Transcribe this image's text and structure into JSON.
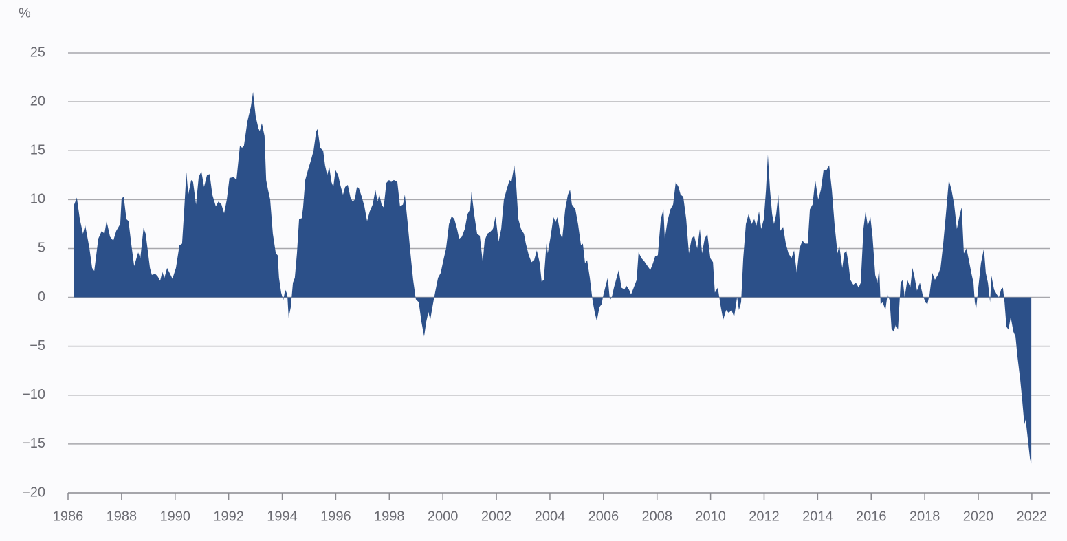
{
  "chart_data": {
    "type": "area",
    "y_label": "%",
    "x": [
      1986.23,
      1986.33,
      1986.44,
      1986.56,
      1986.64,
      1986.8,
      1986.9,
      1986.98,
      1987.13,
      1987.26,
      1987.36,
      1987.44,
      1987.57,
      1987.69,
      1987.8,
      1987.95,
      1988,
      1988.08,
      1988.18,
      1988.26,
      1988.36,
      1988.47,
      1988.62,
      1988.7,
      1988.82,
      1988.9,
      1989.06,
      1989.13,
      1989.26,
      1989.36,
      1989.44,
      1989.52,
      1989.6,
      1989.7,
      1989.83,
      1989.9,
      1990.03,
      1990.16,
      1990.26,
      1990.34,
      1990.42,
      1990.49,
      1990.6,
      1990.67,
      1990.78,
      1990.88,
      1990.98,
      1991.08,
      1991.19,
      1991.29,
      1991.39,
      1991.52,
      1991.62,
      1991.73,
      1991.83,
      1991.93,
      1992.03,
      1992.19,
      1992.29,
      1992.42,
      1992.5,
      1992.57,
      1992.7,
      1992.83,
      1992.91,
      1993.01,
      1993.11,
      1993.16,
      1993.24,
      1993.34,
      1993.4,
      1993.47,
      1993.55,
      1993.65,
      1993.76,
      1993.83,
      1993.88,
      1993.96,
      1994.04,
      1994.11,
      1994.19,
      1994.24,
      1994.32,
      1994.4,
      1994.47,
      1994.55,
      1994.63,
      1994.73,
      1994.78,
      1994.86,
      1994.96,
      1995.07,
      1995.17,
      1995.27,
      1995.32,
      1995.42,
      1995.53,
      1995.6,
      1995.68,
      1995.76,
      1995.84,
      1995.91,
      1995.99,
      1996.09,
      1996.17,
      1996.27,
      1996.35,
      1996.45,
      1996.55,
      1996.63,
      1996.71,
      1996.79,
      1996.86,
      1996.97,
      1997.07,
      1997.17,
      1997.27,
      1997.38,
      1997.48,
      1997.56,
      1997.63,
      1997.71,
      1997.79,
      1997.89,
      1997.99,
      1998.07,
      1998.17,
      1998.3,
      1998.4,
      1998.51,
      1998.58,
      1998.69,
      1998.79,
      1998.89,
      1998.99,
      1999.1,
      1999.2,
      1999.3,
      1999.38,
      1999.46,
      1999.53,
      1999.61,
      1999.71,
      1999.82,
      1999.92,
      2000.02,
      2000.12,
      2000.23,
      2000.33,
      2000.43,
      2000.53,
      2000.61,
      2000.71,
      2000.82,
      2000.92,
      2001.02,
      2001.07,
      2001.18,
      2001.28,
      2001.38,
      2001.49,
      2001.56,
      2001.66,
      2001.77,
      2001.87,
      2001.97,
      2002.08,
      2002.18,
      2002.28,
      2002.38,
      2002.49,
      2002.56,
      2002.67,
      2002.74,
      2002.82,
      2002.92,
      2003.03,
      2003.1,
      2003.21,
      2003.31,
      2003.41,
      2003.51,
      2003.62,
      2003.69,
      2003.77,
      2003.87,
      2003.92,
      2004.03,
      2004.13,
      2004.21,
      2004.28,
      2004.39,
      2004.46,
      2004.57,
      2004.67,
      2004.75,
      2004.82,
      2004.95,
      2005.05,
      2005.16,
      2005.23,
      2005.31,
      2005.39,
      2005.49,
      2005.59,
      2005.67,
      2005.75,
      2005.85,
      2005.93,
      2006,
      2006.11,
      2006.16,
      2006.24,
      2006.31,
      2006.39,
      2006.49,
      2006.57,
      2006.67,
      2006.78,
      2006.85,
      2006.95,
      2007.03,
      2007.13,
      2007.24,
      2007.31,
      2007.42,
      2007.52,
      2007.62,
      2007.75,
      2007.85,
      2007.93,
      2008.03,
      2008.14,
      2008.24,
      2008.29,
      2008.39,
      2008.5,
      2008.6,
      2008.7,
      2008.8,
      2008.88,
      2008.98,
      2009.09,
      2009.19,
      2009.29,
      2009.39,
      2009.5,
      2009.6,
      2009.68,
      2009.78,
      2009.88,
      2009.99,
      2010.09,
      2010.16,
      2010.27,
      2010.37,
      2010.47,
      2010.58,
      2010.68,
      2010.78,
      2010.88,
      2010.99,
      2011.06,
      2011.14,
      2011.22,
      2011.32,
      2011.42,
      2011.53,
      2011.63,
      2011.71,
      2011.81,
      2011.89,
      2011.99,
      2012.07,
      2012.14,
      2012.22,
      2012.3,
      2012.37,
      2012.45,
      2012.53,
      2012.6,
      2012.71,
      2012.81,
      2012.91,
      2013.02,
      2013.12,
      2013.22,
      2013.32,
      2013.43,
      2013.53,
      2013.63,
      2013.71,
      2013.81,
      2013.91,
      2014.02,
      2014.12,
      2014.22,
      2014.33,
      2014.43,
      2014.53,
      2014.63,
      2014.74,
      2014.81,
      2014.92,
      2014.99,
      2015.07,
      2015.15,
      2015.22,
      2015.33,
      2015.43,
      2015.53,
      2015.61,
      2015.71,
      2015.79,
      2015.87,
      2015.97,
      2016.05,
      2016.15,
      2016.23,
      2016.3,
      2016.35,
      2016.43,
      2016.53,
      2016.61,
      2016.69,
      2016.76,
      2016.84,
      2016.92,
      2017,
      2017.1,
      2017.18,
      2017.25,
      2017.35,
      2017.46,
      2017.54,
      2017.61,
      2017.71,
      2017.82,
      2017.92,
      2018.02,
      2018.1,
      2018.18,
      2018.28,
      2018.38,
      2018.49,
      2018.59,
      2018.69,
      2018.79,
      2018.9,
      2019,
      2019.1,
      2019.2,
      2019.31,
      2019.38,
      2019.46,
      2019.56,
      2019.67,
      2019.74,
      2019.82,
      2019.87,
      2019.92,
      2020,
      2020.1,
      2020.21,
      2020.28,
      2020.36,
      2020.44,
      2020.49,
      2020.59,
      2020.69,
      2020.77,
      2020.85,
      2020.92,
      2020.98,
      2021.05,
      2021.13,
      2021.21,
      2021.31,
      2021.39,
      2021.46,
      2021.57,
      2021.64,
      2021.72,
      2021.77,
      2021.85,
      2021.93,
      2021.98
    ],
    "values": [
      9.5,
      10.2,
      8,
      6.5,
      7.4,
      5,
      3,
      2.7,
      6,
      6.8,
      6.5,
      7.8,
      6.2,
      5.8,
      6.8,
      7.5,
      10.1,
      10.3,
      8,
      7.8,
      5.5,
      3.2,
      4.6,
      4,
      7.1,
      6.5,
      3,
      2.3,
      2.4,
      2.1,
      1.7,
      2.6,
      2,
      3,
      2.3,
      1.9,
      3,
      5.3,
      5.5,
      9,
      12.8,
      10.5,
      12,
      11.8,
      9.5,
      12.3,
      12.9,
      11.3,
      12.5,
      12.6,
      10.5,
      9.3,
      9.8,
      9.5,
      8.6,
      10,
      12.2,
      12.3,
      12,
      15.5,
      15.3,
      15.5,
      18,
      19.5,
      21,
      18.5,
      17.3,
      17,
      17.8,
      16.5,
      12,
      11,
      10,
      6.5,
      4.5,
      4.3,
      2,
      0.5,
      -0.3,
      0.8,
      0.3,
      -2.1,
      -1,
      1.5,
      2,
      4.5,
      8,
      8.1,
      9.2,
      12,
      13,
      14,
      15,
      17,
      17.2,
      15.3,
      15,
      13.5,
      12.5,
      13.3,
      11.8,
      11.3,
      13,
      12.5,
      11.5,
      10.5,
      11.3,
      11.5,
      10.2,
      9.8,
      10,
      11.3,
      11.2,
      10.3,
      9.3,
      7.8,
      8.8,
      9.5,
      11,
      9.8,
      10.5,
      9.5,
      9.2,
      11.7,
      12,
      11.8,
      12,
      11.8,
      9.3,
      9.5,
      10.5,
      7.5,
      4.5,
      1.8,
      -0.2,
      -0.5,
      -2.5,
      -4,
      -2.5,
      -1.5,
      -2.3,
      -1,
      0.5,
      2,
      2.5,
      3.8,
      5,
      7.5,
      8.3,
      8,
      7,
      6,
      6.2,
      7,
      8.5,
      9,
      10.8,
      8.3,
      6.5,
      6.3,
      3.6,
      5.8,
      6.5,
      6.7,
      7,
      8.3,
      5.7,
      7,
      10,
      11,
      12,
      11.8,
      13.5,
      11.5,
      8,
      7,
      6.5,
      5.5,
      4.3,
      3.6,
      3.8,
      4.8,
      3.5,
      1.6,
      1.8,
      5.5,
      4.5,
      6.3,
      8.2,
      7.7,
      8.2,
      6.5,
      6,
      9,
      10.5,
      11,
      9.5,
      9,
      7.5,
      5.3,
      5.5,
      3.5,
      3.8,
      2,
      -0.3,
      -1.5,
      -2.4,
      -1,
      -0.7,
      0.3,
      1.5,
      2,
      -0.3,
      0,
      1,
      2,
      2.8,
      1,
      0.8,
      1.2,
      0.8,
      0.3,
      1,
      1.8,
      4.6,
      4,
      3.7,
      3.3,
      2.8,
      3.5,
      4.2,
      4.3,
      8,
      9,
      6,
      7.8,
      9,
      9.5,
      11.8,
      11.3,
      10.5,
      10.3,
      8,
      4.5,
      6,
      6.3,
      5,
      7,
      4.5,
      6,
      6.5,
      4,
      3.6,
      0.5,
      1,
      -0.8,
      -2.3,
      -1.3,
      -1.6,
      -1.3,
      -2,
      0,
      -1.3,
      -0.5,
      4,
      7.5,
      8.5,
      7.5,
      8,
      7.3,
      8.8,
      7,
      8,
      11,
      14.6,
      11,
      8.5,
      7.5,
      8.5,
      10.5,
      6.8,
      7.2,
      5.5,
      4.5,
      4,
      4.8,
      2.5,
      5,
      5.8,
      5.5,
      5.5,
      9,
      9.5,
      12,
      10,
      11,
      13,
      13,
      13.5,
      11,
      7.5,
      4.5,
      5.3,
      3,
      4.5,
      4.8,
      3.5,
      1.8,
      1.3,
      1.5,
      1,
      1.5,
      7,
      8.8,
      7.3,
      8.2,
      6.2,
      2.3,
      1.5,
      3,
      -0.7,
      -0.5,
      -1.3,
      0.3,
      -0.3,
      -3.2,
      -3.5,
      -2.8,
      -3.3,
      1.5,
      1.8,
      0,
      1.8,
      1,
      3,
      2.2,
      0.7,
      1.5,
      0.3,
      -0.5,
      -0.7,
      0.3,
      2.5,
      1.8,
      2.3,
      3,
      5.5,
      8.5,
      12,
      11,
      9.5,
      7,
      8.5,
      9.2,
      4.5,
      5,
      3.5,
      2.5,
      1.5,
      -0.5,
      -1.2,
      1,
      3.5,
      5,
      2.5,
      1.5,
      -0.5,
      2.2,
      0.8,
      0.3,
      0,
      0.8,
      1,
      -0.5,
      -3,
      -3.3,
      -2,
      -3.5,
      -4,
      -6,
      -8.5,
      -10.5,
      -13,
      -12.5,
      -14.5,
      -16.5,
      -17
    ],
    "color": "#2c5089",
    "xlim": [
      1986,
      2022.67
    ],
    "xticks": [
      1986,
      1988,
      1990,
      1992,
      1994,
      1996,
      1998,
      2000,
      2002,
      2004,
      2006,
      2008,
      2010,
      2012,
      2014,
      2016,
      2018,
      2020,
      2022
    ],
    "ylim": [
      -20,
      25
    ],
    "yticks": [
      {
        "value": -20,
        "label": "−20"
      },
      {
        "value": -15,
        "label": "−15"
      },
      {
        "value": -10,
        "label": "−10"
      },
      {
        "value": -5,
        "label": "−5"
      },
      0,
      5,
      10,
      15,
      20,
      25
    ],
    "grid": true
  }
}
